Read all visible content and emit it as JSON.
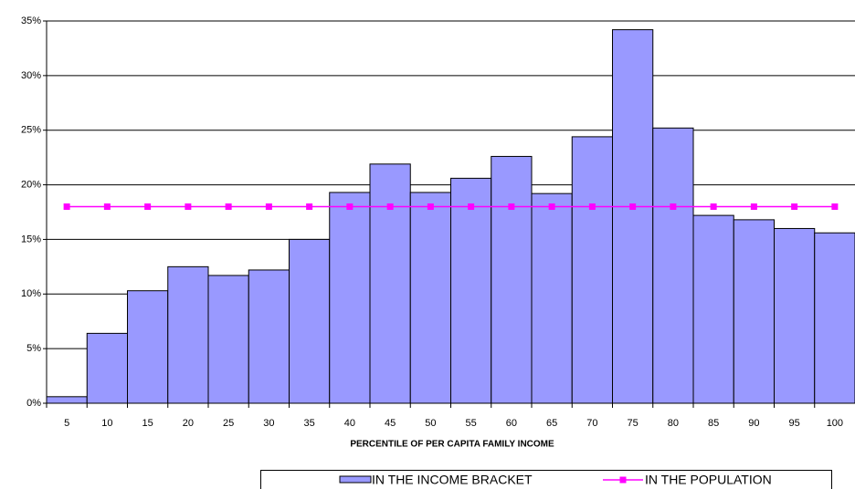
{
  "chart_data": {
    "type": "bar",
    "x_label": "PERCENTILE OF PER CAPITA FAMILY INCOME",
    "categories": [
      "5",
      "10",
      "15",
      "20",
      "25",
      "30",
      "35",
      "40",
      "45",
      "50",
      "55",
      "60",
      "65",
      "70",
      "75",
      "80",
      "85",
      "90",
      "95",
      "100"
    ],
    "series": [
      {
        "name": "IN THE INCOME BRACKET",
        "type": "bar",
        "color": "#9999ff",
        "values": [
          0.6,
          6.4,
          10.3,
          12.5,
          11.7,
          12.2,
          15.0,
          19.3,
          21.9,
          19.3,
          20.6,
          22.6,
          19.2,
          24.4,
          34.2,
          25.2,
          17.2,
          16.8,
          16.0,
          15.6
        ]
      },
      {
        "name": "IN THE POPULATION",
        "type": "line",
        "color": "#ff00ff",
        "values": [
          18,
          18,
          18,
          18,
          18,
          18,
          18,
          18,
          18,
          18,
          18,
          18,
          18,
          18,
          18,
          18,
          18,
          18,
          18,
          18
        ]
      }
    ],
    "ylim": [
      0,
      35
    ],
    "yticks": [
      {
        "value": 0,
        "label": "0%"
      },
      {
        "value": 5,
        "label": "5%"
      },
      {
        "value": 10,
        "label": "10%"
      },
      {
        "value": 15,
        "label": "15%"
      },
      {
        "value": 20,
        "label": "20%"
      },
      {
        "value": 25,
        "label": "25%"
      },
      {
        "value": 30,
        "label": "30%"
      },
      {
        "value": 35,
        "label": "35%"
      }
    ],
    "grid": true
  }
}
